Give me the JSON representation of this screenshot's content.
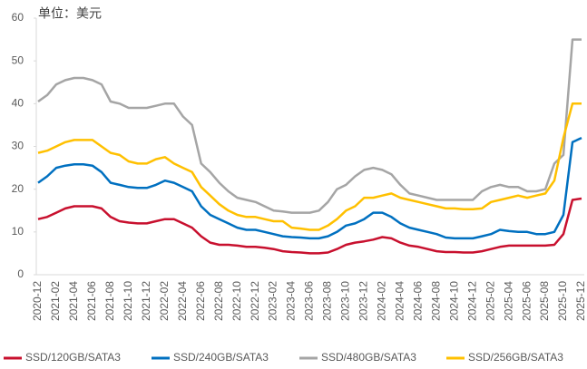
{
  "chart_data": {
    "type": "line",
    "title": "单位：美元",
    "categories": [
      "2020-12",
      null,
      "2021-02",
      null,
      "2021-04",
      null,
      "2021-06",
      null,
      "2021-08",
      null,
      "2021-10",
      null,
      "2021-12",
      null,
      "2022-02",
      null,
      "2022-04",
      null,
      "2022-06",
      null,
      "2022-08",
      null,
      "2022-10",
      null,
      "2022-12",
      null,
      "2023-02",
      null,
      "2023-04",
      null,
      "2023-06",
      null,
      "2023-08",
      null,
      "2023-10",
      null,
      "2023-12",
      null,
      "2024-02",
      null,
      "2024-04",
      null,
      "2024-06",
      null,
      "2024-08",
      null,
      "2024-10",
      null,
      "2024-12",
      null,
      "2025-02",
      null,
      "2025-04",
      null,
      "2025-06",
      null,
      "2025-08",
      null,
      "2025-10",
      null,
      "2025-12"
    ],
    "series": [
      {
        "name": "SSD/120GB/SATA3",
        "color": "#c8102e",
        "values": [
          13,
          13.5,
          14.5,
          15.5,
          16,
          16,
          16,
          15.5,
          13.5,
          12.5,
          12.2,
          12,
          12,
          12.5,
          13,
          13,
          12,
          11,
          9,
          7.5,
          7,
          7,
          6.8,
          6.5,
          6.5,
          6.3,
          6,
          5.5,
          5.3,
          5.2,
          5,
          5,
          5.2,
          6,
          7,
          7.5,
          7.8,
          8.2,
          8.8,
          8.5,
          7.5,
          6.8,
          6.5,
          6,
          5.5,
          5.3,
          5.3,
          5.2,
          5.2,
          5.5,
          6,
          6.5,
          6.8,
          6.8,
          6.8,
          6.8,
          6.8,
          7,
          9.5,
          17.5,
          17.8
        ]
      },
      {
        "name": "SSD/240GB/SATA3",
        "color": "#0070c0",
        "values": [
          21.5,
          23,
          25,
          25.5,
          25.8,
          25.8,
          25.5,
          24,
          21.5,
          21,
          20.5,
          20.3,
          20.3,
          21,
          22,
          21.5,
          20.5,
          19.5,
          16,
          14,
          13,
          12,
          11,
          10.5,
          10.5,
          10,
          9.5,
          9,
          8.8,
          8.7,
          8.5,
          8.5,
          9,
          10,
          11.5,
          12,
          13,
          14.5,
          14.5,
          13.5,
          12,
          11,
          10.5,
          10,
          9.5,
          8.7,
          8.5,
          8.5,
          8.5,
          9,
          9.5,
          10.5,
          10.2,
          10,
          10,
          9.5,
          9.5,
          10,
          14,
          31,
          32
        ]
      },
      {
        "name": "SSD/480GB/SATA3",
        "color": "#a5a5a5",
        "values": [
          40.5,
          42,
          44.5,
          45.5,
          46,
          46,
          45.5,
          44.5,
          40.5,
          40,
          39,
          39,
          39,
          39.5,
          40,
          40,
          37,
          35,
          26,
          24,
          21.5,
          19.5,
          18,
          17.5,
          17,
          16,
          15,
          14.8,
          14.5,
          14.5,
          14.5,
          15,
          17,
          20,
          21,
          23,
          24.5,
          25,
          24.5,
          23.5,
          21,
          19,
          18.5,
          18,
          17.5,
          17.5,
          17.5,
          17.5,
          17.5,
          19.5,
          20.5,
          21,
          20.5,
          20.5,
          19.5,
          19.5,
          20,
          26,
          28,
          55,
          55
        ]
      },
      {
        "name": "SSD/256GB/SATA3",
        "color": "#ffc000",
        "values": [
          28.5,
          29,
          30,
          31,
          31.5,
          31.5,
          31.5,
          30,
          28.5,
          28,
          26.5,
          26,
          26,
          27,
          27.5,
          26,
          25,
          24,
          20.5,
          18.5,
          16.5,
          15,
          14,
          13.5,
          13.5,
          13,
          12.5,
          12.5,
          11,
          10.8,
          10.5,
          10.5,
          11.5,
          13,
          15,
          16,
          18,
          18,
          18.5,
          19,
          18,
          17.5,
          17,
          16.5,
          16,
          15.5,
          15.5,
          15.3,
          15.3,
          15.5,
          17,
          17.5,
          18,
          18.5,
          18,
          18.5,
          19,
          22,
          32,
          40,
          40
        ]
      }
    ],
    "ylim": [
      0,
      60
    ],
    "yticks": [
      0,
      10,
      20,
      30,
      40,
      50,
      60
    ]
  }
}
